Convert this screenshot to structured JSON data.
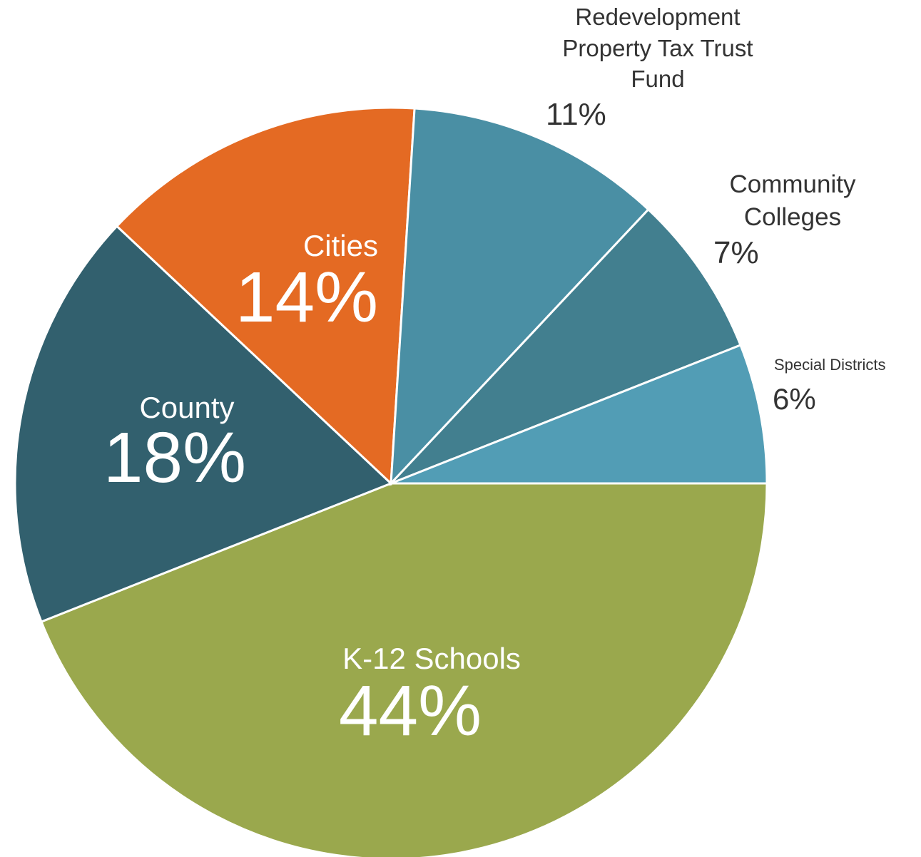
{
  "chart_data": {
    "type": "pie",
    "categories": [
      "K-12 Schools",
      "County",
      "Cities",
      "Redevelopment Property Tax Trust Fund",
      "Community Colleges",
      "Special Districts"
    ],
    "values": [
      44,
      18,
      14,
      11,
      7,
      6
    ],
    "value_labels": [
      "44%",
      "18%",
      "14%",
      "11%",
      "7%",
      "6%"
    ],
    "colors": [
      "#9aa84d",
      "#32606e",
      "#e46a23",
      "#4a8fa4",
      "#427f8f",
      "#529db5"
    ]
  }
}
